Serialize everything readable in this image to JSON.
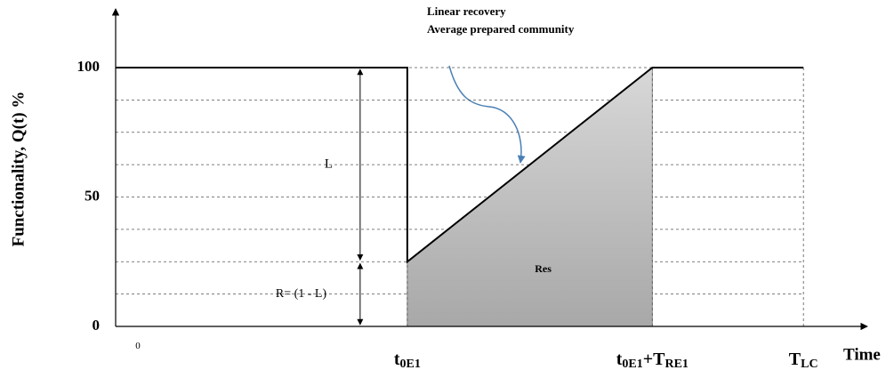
{
  "chart_data": {
    "type": "line",
    "y_label": "Functionality, Q(t) %",
    "x_label": "Time",
    "annotations": {
      "note_line1": "Linear recovery",
      "note_line2": "Average prepared community",
      "loss": "L",
      "residual": "R= (1 - L)",
      "area": "Res"
    },
    "series": [
      {
        "name": "Functionality",
        "color": "#000000",
        "x": [
          0,
          38.8,
          38.8,
          71.4,
          91.5
        ],
        "values": [
          100,
          100,
          25,
          100,
          100
        ]
      }
    ],
    "xlim": [
      0,
      100
    ],
    "xticks": [
      {
        "value": 0,
        "label": [
          "0"
        ]
      },
      {
        "value": 38.8,
        "label": [
          "t",
          "0E1"
        ]
      },
      {
        "value": 71.4,
        "label": [
          "t",
          "0E1",
          "+T",
          "RE1"
        ]
      },
      {
        "value": 91.5,
        "label": [
          "T",
          "LC"
        ]
      }
    ],
    "ylim": [
      0,
      100
    ],
    "yticks": [
      0,
      50,
      100
    ],
    "minor_grid": [
      12.5,
      25,
      37.5,
      62.5,
      75,
      87.5
    ],
    "grid": true
  }
}
